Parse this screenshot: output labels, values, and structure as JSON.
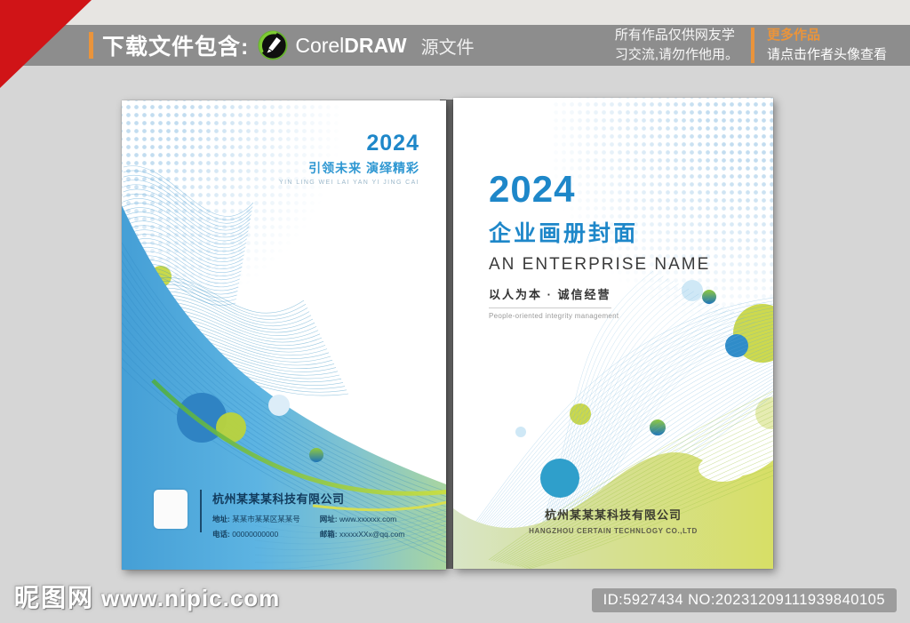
{
  "header": {
    "includes_label": "下载文件包含:",
    "app_name_regular": "Corel",
    "app_name_bold": "DRAW",
    "source_file_label": "源文件",
    "notice_line1": "所有作品仅供网友学",
    "notice_line2": "习交流,请勿作他用。",
    "more_works": "更多作品",
    "more_works_hint": "请点击作者头像查看"
  },
  "back_cover": {
    "year": "2024",
    "slogan": "引领未来 演绎精彩",
    "slogan_pinyin": "YIN LING WEI LAI YAN YI JING CAI",
    "company": "杭州某某某科技有限公司",
    "contacts": [
      {
        "label": "地址:",
        "value": "某某市某某区某某号"
      },
      {
        "label": "网址:",
        "value": "www.xxxxxx.com"
      },
      {
        "label": "电话:",
        "value": "00000000000"
      },
      {
        "label": "邮箱:",
        "value": "xxxxxXXx@qq.com"
      }
    ]
  },
  "front_cover": {
    "year": "2024",
    "title": "企业画册封面",
    "subtitle": "AN ENTERPRISE NAME",
    "tagline": "以人为本 · 诚信经营",
    "tagline_en": "People-oriented integrity management",
    "company": "杭州某某某科技有限公司",
    "company_en": "HANGZHOU CERTAIN TECHNLOGY CO.,LTD"
  },
  "footer": {
    "watermark_site": "昵图网",
    "watermark_url": "www.nipic.com",
    "id_badge": "ID:5927434 NO:20231209111939840105"
  },
  "colors": {
    "accent_orange": "#ea943b",
    "title_blue": "#1e87c9",
    "ribbon_red": "#d01417",
    "bar_gray": "#8d8d8d",
    "lime_green": "#c9d94a",
    "deep_blue": "#2f83c3"
  }
}
